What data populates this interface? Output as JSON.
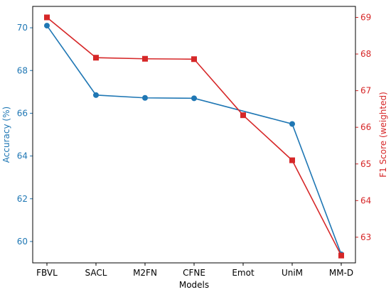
{
  "chart_data": {
    "type": "line",
    "categories": [
      "FBVL",
      "SACL",
      "M2FN",
      "CFNE",
      "Emot",
      "UniM",
      "MM-D"
    ],
    "xlabel": "Models",
    "left_axis": {
      "label": "Accuracy (%)",
      "ylim": [
        59.0,
        71.0
      ],
      "ticks": [
        60,
        62,
        64,
        66,
        68,
        70
      ],
      "color": "#1f77b4"
    },
    "right_axis": {
      "label": "F1 Score (weighted)",
      "ylim": [
        62.3,
        69.3
      ],
      "ticks": [
        63,
        64,
        65,
        66,
        67,
        68,
        69
      ],
      "color": "#d62728"
    },
    "series": [
      {
        "axis": "left",
        "color": "#1f77b4",
        "marker": "circle",
        "values": [
          70.1,
          66.85,
          66.72,
          66.7,
          null,
          65.5,
          59.4
        ]
      },
      {
        "axis": "right",
        "color": "#d62728",
        "marker": "square",
        "values": [
          69.0,
          67.9,
          67.87,
          67.86,
          66.33,
          65.1,
          62.5
        ]
      }
    ],
    "grid": false,
    "legend": "none"
  }
}
